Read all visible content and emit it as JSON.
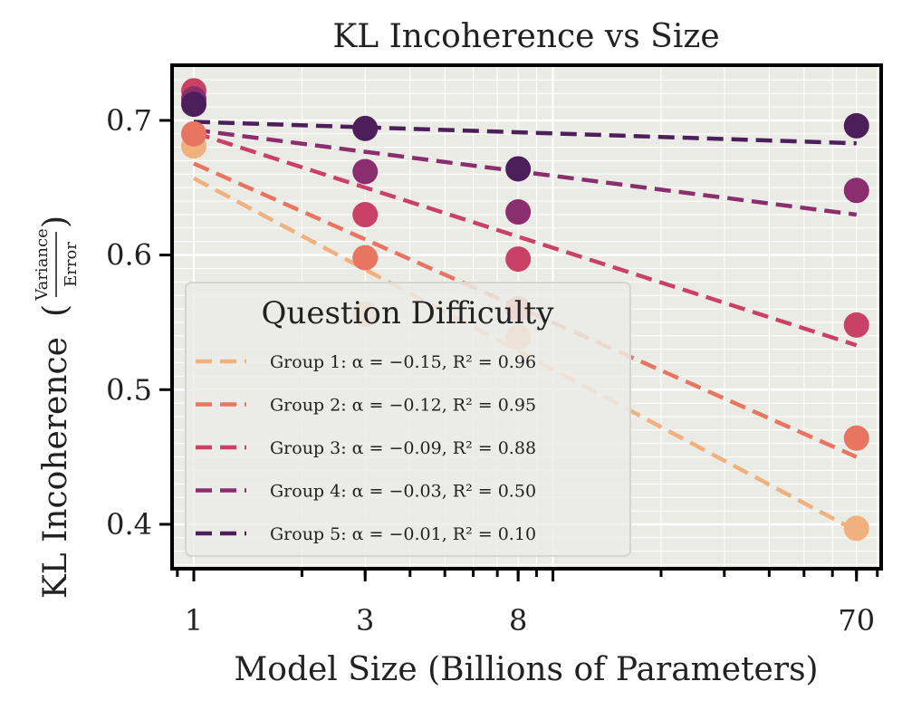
{
  "chart_data": {
    "type": "scatter",
    "title": "KL Incoherence vs Size",
    "xlabel": "Model Size (Billions of Parameters)",
    "ylabel": "KL Incoherence",
    "ylabel_fraction": {
      "numerator": "Variance",
      "denominator": "Error"
    },
    "xscale": "log",
    "xlim": [
      0.87,
      82
    ],
    "ylim": [
      0.367,
      0.741
    ],
    "x_ticks": [
      1,
      3,
      8,
      70
    ],
    "x_tick_labels": [
      "1",
      "3",
      "8",
      "70"
    ],
    "y_ticks": [
      0.4,
      0.5,
      0.6,
      0.7
    ],
    "y_tick_labels": [
      "0.4",
      "0.5",
      "0.6",
      "0.7"
    ],
    "x": [
      1,
      3,
      8,
      70
    ],
    "grid": true,
    "legend": {
      "title": "Question Difficulty",
      "position": "lower-left"
    },
    "series": [
      {
        "name": "Group 1",
        "label": "Group 1: α = −0.15, R² = 0.96",
        "color": "#f1b17f",
        "values": [
          0.681,
          0.556,
          0.539,
          0.397
        ],
        "fit": [
          0.657,
          0.395
        ]
      },
      {
        "name": "Group 2",
        "label": "Group 2: α = −0.12, R² = 0.95",
        "color": "#e87462",
        "values": [
          0.69,
          0.598,
          0.56,
          0.464
        ],
        "fit": [
          0.668,
          0.45
        ]
      },
      {
        "name": "Group 3",
        "label": "Group 3: α = −0.09, R² = 0.88",
        "color": "#c94266",
        "values": [
          0.722,
          0.63,
          0.597,
          0.548
        ],
        "fit": [
          0.691,
          0.533
        ]
      },
      {
        "name": "Group 4",
        "label": "Group 4: α = −0.03, R² = 0.50",
        "color": "#8b2e70",
        "values": [
          0.716,
          0.662,
          0.632,
          0.648
        ],
        "fit": [
          0.693,
          0.63
        ]
      },
      {
        "name": "Group 5",
        "label": "Group 5: α = −0.01, R² = 0.10",
        "color": "#4c1e5a",
        "values": [
          0.712,
          0.694,
          0.664,
          0.696
        ],
        "fit": [
          0.699,
          0.683
        ]
      }
    ]
  }
}
